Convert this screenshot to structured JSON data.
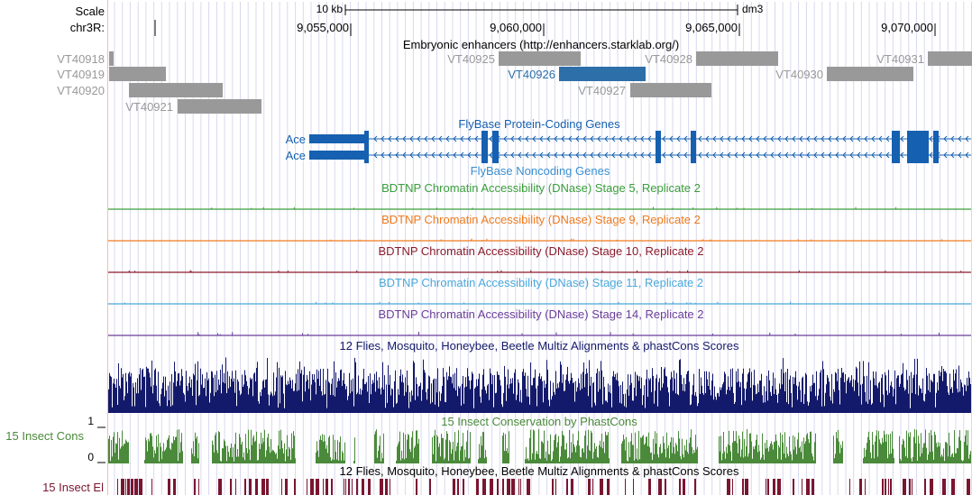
{
  "header": {
    "scale_label": "Scale",
    "scale_bar_text": "10 kb",
    "assembly": "dm3",
    "chrom_label": "chr3R:",
    "ticks": [
      "9,055,000",
      "9,060,000",
      "9,065,000",
      "9,070,000"
    ]
  },
  "enhancers": {
    "title": "Embryonic enhancers (http://enhancers.starklab.org/)",
    "items": [
      {
        "name": "VT40918",
        "state": "gray"
      },
      {
        "name": "VT40919",
        "state": "gray"
      },
      {
        "name": "VT40920",
        "state": "gray"
      },
      {
        "name": "VT40921",
        "state": "gray"
      },
      {
        "name": "VT40925",
        "state": "gray"
      },
      {
        "name": "VT40926",
        "state": "highlighted"
      },
      {
        "name": "VT40927",
        "state": "gray"
      },
      {
        "name": "VT40928",
        "state": "gray"
      },
      {
        "name": "VT40930",
        "state": "gray"
      },
      {
        "name": "VT40931",
        "state": "gray"
      }
    ]
  },
  "genes": {
    "title": "FlyBase Protein-Coding Genes",
    "transcripts": [
      {
        "name": "Ace"
      },
      {
        "name": "Ace"
      }
    ],
    "noncoding_title": "FlyBase Noncoding Genes"
  },
  "dnase_tracks": [
    {
      "title": "BDTNP Chromatin Accessibility (DNase) Stage 5, Replicate 2",
      "color": "#3a9e3a"
    },
    {
      "title": "BDTNP Chromatin Accessibility (DNase) Stage 9, Replicate 2",
      "color": "#f07a1c"
    },
    {
      "title": "BDTNP Chromatin Accessibility (DNase) Stage 10, Replicate 2",
      "color": "#8b1a2b"
    },
    {
      "title": "BDTNP Chromatin Accessibility (DNase) Stage 11, Replicate 2",
      "color": "#4aa8d8"
    },
    {
      "title": "BDTNP Chromatin Accessibility (DNase) Stage 14, Replicate 2",
      "color": "#6a3d9a"
    }
  ],
  "multiz": {
    "title": "12 Flies, Mosquito, Honeybee, Beetle Multiz Alignments & phastCons Scores",
    "color": "#141a6b"
  },
  "insect_cons": {
    "title": "15 Insect Conservation by PhastCons",
    "side_label": "15 Insect Cons",
    "axis_top": "1",
    "axis_bottom": "0",
    "color": "#4a8a3a"
  },
  "insect_el": {
    "title": "12 Flies, Mosquito, Honeybee, Beetle Multiz Alignments & phastCons Scores",
    "side_label": "15 Insect El",
    "color": "#7a1530"
  },
  "colors": {
    "enhancer_gray": "#999999",
    "enhancer_highlight": "#2d6fa8",
    "gene_blue": "#1560b0",
    "grid_line": "#d8d8f0",
    "left_edge": "#f4b8b8"
  }
}
